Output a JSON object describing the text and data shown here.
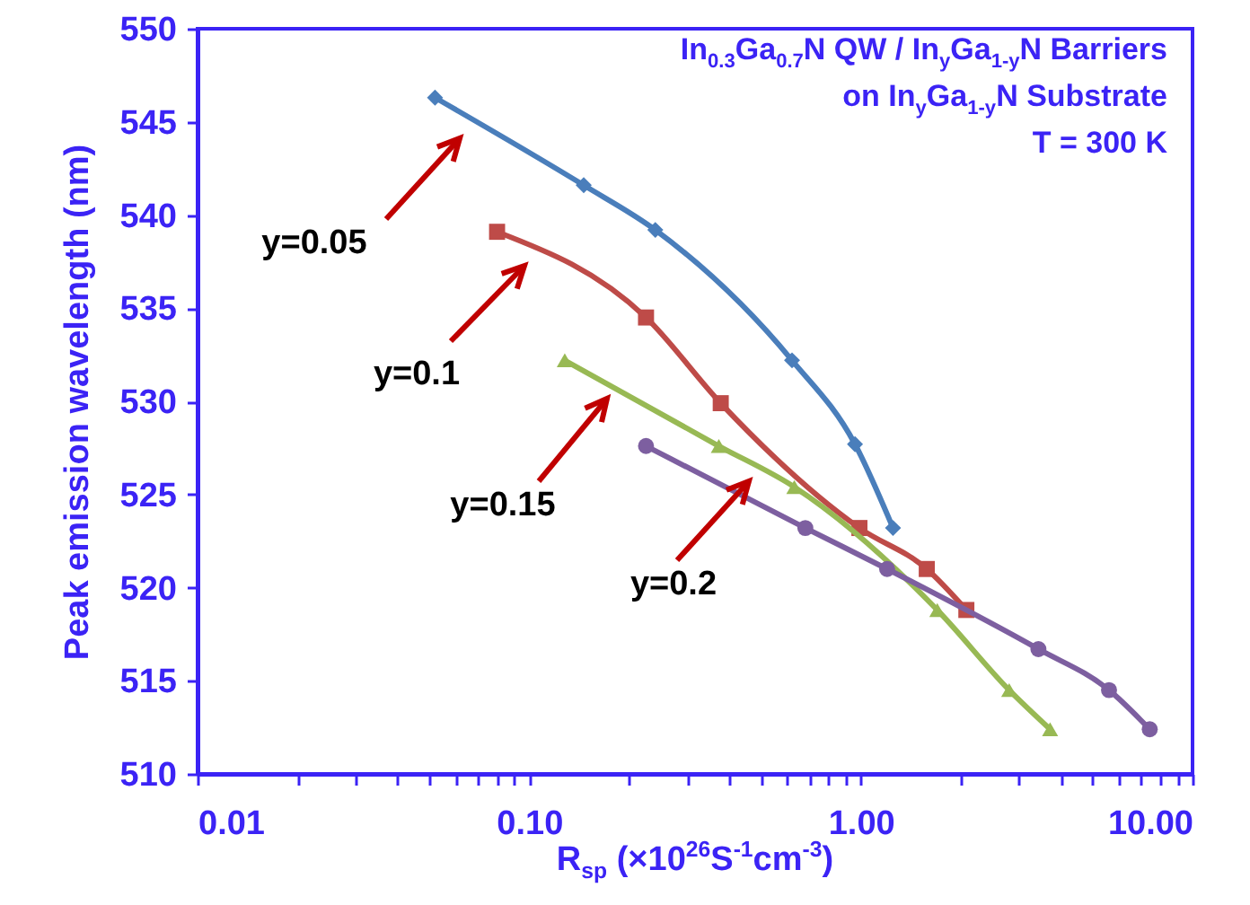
{
  "chart_data": {
    "type": "line",
    "xlabel": "R$_{sp}$ (×10$^{26}$S$^{-1}$cm$^{-3}$)",
    "ylabel": "Peak emission wavelength (nm)",
    "annotations": [
      "In$_{0.3}$Ga$_{0.7}$N QW / In$_{y}$Ga$_{1-y}$N Barriers",
      "on In$_{y}$Ga$_{1-y}$N Substrate",
      "T = 300 K"
    ],
    "log": "x",
    "xlim": [
      0.01,
      10
    ],
    "xticks": [
      {
        "value": 0.01,
        "label": "0.01"
      },
      {
        "value": 0.02,
        "label": null
      },
      {
        "value": 0.03,
        "label": null
      },
      {
        "value": 0.04,
        "label": null
      },
      {
        "value": 0.05,
        "label": null
      },
      {
        "value": 0.06,
        "label": null
      },
      {
        "value": 0.07,
        "label": null
      },
      {
        "value": 0.08,
        "label": null
      },
      {
        "value": 0.09,
        "label": null
      },
      {
        "value": 0.1,
        "label": "0.10"
      },
      {
        "value": 0.2,
        "label": null
      },
      {
        "value": 0.3,
        "label": null
      },
      {
        "value": 0.4,
        "label": null
      },
      {
        "value": 0.5,
        "label": null
      },
      {
        "value": 0.6,
        "label": null
      },
      {
        "value": 0.7,
        "label": null
      },
      {
        "value": 0.8,
        "label": null
      },
      {
        "value": 0.9,
        "label": null
      },
      {
        "value": 1,
        "label": "1.00"
      },
      {
        "value": 2,
        "label": null
      },
      {
        "value": 3,
        "label": null
      },
      {
        "value": 4,
        "label": null
      },
      {
        "value": 5,
        "label": null
      },
      {
        "value": 6,
        "label": null
      },
      {
        "value": 7,
        "label": null
      },
      {
        "value": 8,
        "label": null
      },
      {
        "value": 9,
        "label": null
      },
      {
        "value": 10,
        "label": "10.00"
      }
    ],
    "ylim": [
      510,
      550
    ],
    "yticks": [
      510,
      515,
      520,
      525,
      530,
      535,
      540,
      545,
      550
    ],
    "grid": false,
    "line_style": "solid",
    "series": [
      {
        "name": "y=0.05",
        "color": "#4a7ebb",
        "marker": "diamond",
        "x": [
          0.052,
          0.146,
          0.24,
          0.62,
          0.96,
          1.25
        ],
        "values": [
          546.3,
          541.6,
          539.2,
          532.2,
          527.7,
          523.2
        ]
      },
      {
        "name": "y=0.1",
        "color": "#be4b48",
        "marker": "square",
        "x": [
          0.08,
          0.225,
          0.378,
          0.99,
          1.58,
          2.08
        ],
        "values": [
          539.1,
          534.5,
          529.9,
          523.2,
          521.0,
          518.8
        ]
      },
      {
        "name": "y=0.15",
        "color": "#98b954",
        "marker": "triangle",
        "x": [
          0.128,
          0.373,
          0.63,
          1.7,
          2.8,
          3.72
        ],
        "values": [
          532.2,
          527.6,
          525.4,
          518.8,
          514.5,
          512.4
        ]
      },
      {
        "name": "y=0.2",
        "color": "#7d5fa0",
        "marker": "circle",
        "x": [
          0.225,
          0.68,
          1.2,
          3.43,
          5.6,
          7.43
        ],
        "values": [
          527.6,
          523.2,
          521.0,
          516.7,
          514.5,
          512.4
        ]
      }
    ]
  }
}
